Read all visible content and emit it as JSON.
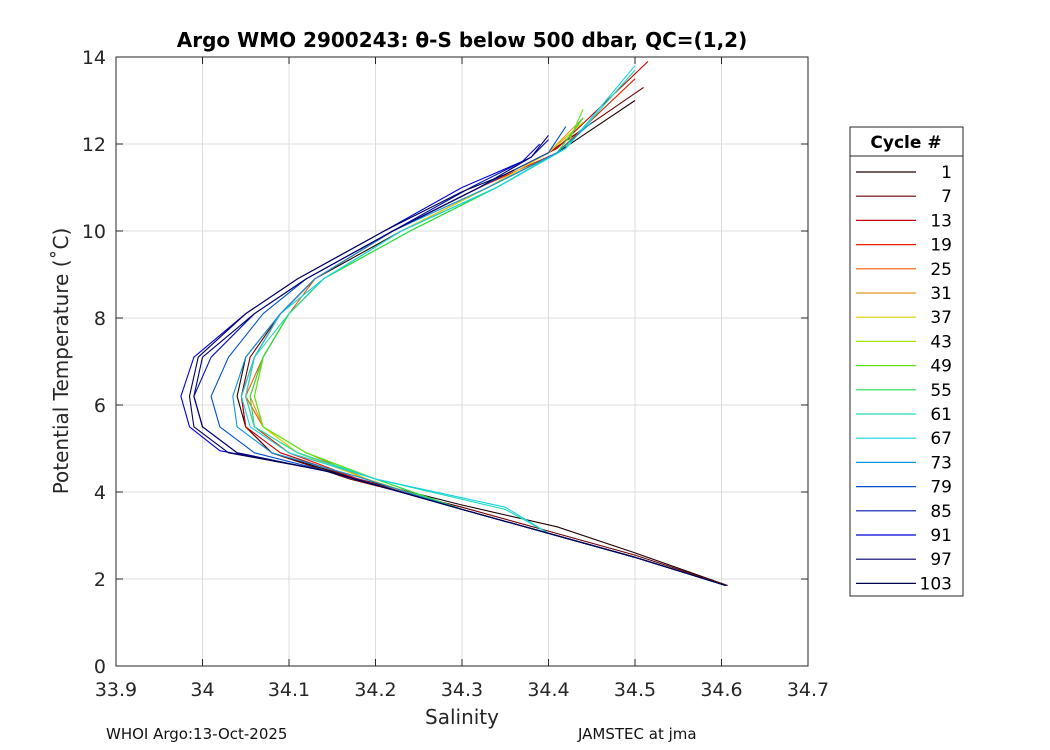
{
  "chart_data": {
    "type": "line",
    "title": "Argo WMO 2900243: θ-S below 500 dbar,  QC=(1,2)",
    "xlabel": "Salinity",
    "ylabel": "Potential Temperature (˚C)",
    "xlim": [
      33.9,
      34.7
    ],
    "ylim": [
      0,
      14
    ],
    "x_ticks": [
      33.9,
      34.0,
      34.1,
      34.2,
      34.3,
      34.4,
      34.5,
      34.6,
      34.7
    ],
    "x_tick_labels": [
      "33.9",
      "34",
      "34.1",
      "34.2",
      "34.3",
      "34.4",
      "34.5",
      "34.6",
      "34.7"
    ],
    "y_ticks": [
      0,
      2,
      4,
      6,
      8,
      10,
      12,
      14
    ],
    "y_tick_labels": [
      "0",
      "2",
      "4",
      "6",
      "8",
      "10",
      "12",
      "14"
    ],
    "grid": true,
    "legend": {
      "title": "Cycle #",
      "placement": "right"
    },
    "series": [
      {
        "name": "1",
        "color": "#200000",
        "x": [
          34.607,
          34.5,
          34.41,
          34.3,
          34.17,
          34.08,
          34.05,
          34.04,
          34.05,
          34.09,
          34.13,
          34.23,
          34.33,
          34.41,
          34.5
        ],
        "y": [
          1.85,
          2.6,
          3.2,
          3.7,
          4.35,
          4.9,
          5.5,
          6.2,
          7.1,
          8.1,
          8.9,
          10.0,
          11.0,
          11.8,
          13.0
        ]
      },
      {
        "name": "7",
        "color": "#6a0000",
        "x": [
          34.607,
          34.5,
          34.4,
          34.3,
          34.17,
          34.08,
          34.05,
          34.045,
          34.055,
          34.09,
          34.13,
          34.22,
          34.32,
          34.4,
          34.51
        ],
        "y": [
          1.85,
          2.55,
          3.1,
          3.65,
          4.3,
          4.9,
          5.5,
          6.2,
          7.1,
          8.1,
          8.9,
          10.0,
          11.0,
          11.8,
          13.3
        ]
      },
      {
        "name": "13",
        "color": "#c40000",
        "x": [
          34.605,
          34.5,
          34.4,
          34.3,
          34.18,
          34.09,
          34.05,
          34.045,
          34.06,
          34.09,
          34.13,
          34.22,
          34.32,
          34.41,
          34.515
        ],
        "y": [
          1.85,
          2.5,
          3.05,
          3.6,
          4.3,
          4.9,
          5.5,
          6.2,
          7.1,
          8.1,
          8.9,
          10.0,
          11.0,
          11.9,
          13.9
        ]
      },
      {
        "name": "19",
        "color": "#e61e00",
        "x": [
          34.605,
          34.5,
          34.4,
          34.3,
          34.18,
          34.1,
          34.06,
          34.05,
          34.06,
          34.09,
          34.13,
          34.22,
          34.32,
          34.41,
          34.5
        ],
        "y": [
          1.85,
          2.5,
          3.05,
          3.6,
          4.3,
          4.9,
          5.5,
          6.2,
          7.1,
          8.1,
          8.9,
          10.0,
          11.0,
          11.8,
          13.5
        ]
      },
      {
        "name": "25",
        "color": "#f05a00",
        "x": [
          34.605,
          34.5,
          34.4,
          34.3,
          34.19,
          34.12,
          34.07,
          34.05,
          34.07,
          34.1,
          34.13,
          34.22,
          34.32,
          34.4,
          34.44
        ],
        "y": [
          1.85,
          2.5,
          3.05,
          3.6,
          4.3,
          4.9,
          5.5,
          6.2,
          7.1,
          8.1,
          8.9,
          10.0,
          11.0,
          11.8,
          12.5
        ]
      },
      {
        "name": "31",
        "color": "#e8961e",
        "x": [
          34.605,
          34.5,
          34.4,
          34.3,
          34.19,
          34.11,
          34.07,
          34.055,
          34.07,
          34.1,
          34.14,
          34.23,
          34.33,
          34.4,
          34.44
        ],
        "y": [
          1.85,
          2.5,
          3.05,
          3.6,
          4.3,
          4.9,
          5.5,
          6.2,
          7.1,
          8.1,
          8.9,
          10.0,
          11.0,
          11.8,
          12.6
        ]
      },
      {
        "name": "37",
        "color": "#dcd200",
        "x": [
          34.605,
          34.5,
          34.4,
          34.3,
          34.19,
          34.11,
          34.07,
          34.06,
          34.07,
          34.1,
          34.14,
          34.23,
          34.33,
          34.4,
          34.44
        ],
        "y": [
          1.85,
          2.5,
          3.05,
          3.6,
          4.3,
          4.9,
          5.5,
          6.2,
          7.1,
          8.1,
          8.9,
          10.0,
          11.0,
          11.8,
          12.5
        ]
      },
      {
        "name": "43",
        "color": "#a0e600",
        "x": [
          34.605,
          34.5,
          34.4,
          34.3,
          34.2,
          34.12,
          34.07,
          34.06,
          34.07,
          34.1,
          34.14,
          34.24,
          34.34,
          34.41,
          34.44
        ],
        "y": [
          1.85,
          2.5,
          3.05,
          3.6,
          4.3,
          4.9,
          5.5,
          6.2,
          7.1,
          8.1,
          8.9,
          10.0,
          11.0,
          11.8,
          12.6
        ]
      },
      {
        "name": "49",
        "color": "#5ae61e",
        "x": [
          34.605,
          34.5,
          34.4,
          34.3,
          34.2,
          34.12,
          34.07,
          34.06,
          34.07,
          34.1,
          34.14,
          34.24,
          34.34,
          34.42,
          34.44
        ],
        "y": [
          1.85,
          2.5,
          3.05,
          3.6,
          4.3,
          4.9,
          5.5,
          6.2,
          7.1,
          8.1,
          8.9,
          10.0,
          11.0,
          11.9,
          12.8
        ]
      },
      {
        "name": "55",
        "color": "#28dc50",
        "x": [
          34.605,
          34.5,
          34.4,
          34.3,
          34.2,
          34.11,
          34.06,
          34.055,
          34.07,
          34.1,
          34.14,
          34.24,
          34.34,
          34.41,
          34.44
        ],
        "y": [
          1.85,
          2.5,
          3.05,
          3.6,
          4.3,
          4.9,
          5.5,
          6.2,
          7.1,
          8.1,
          8.9,
          10.0,
          11.0,
          11.8,
          12.6
        ]
      },
      {
        "name": "61",
        "color": "#1edcb4",
        "x": [
          34.605,
          34.5,
          34.4,
          34.35,
          34.2,
          34.11,
          34.06,
          34.05,
          34.06,
          34.1,
          34.14,
          34.23,
          34.34,
          34.42,
          34.5
        ],
        "y": [
          1.85,
          2.5,
          3.05,
          3.6,
          4.3,
          4.9,
          5.5,
          6.2,
          7.1,
          8.1,
          8.9,
          10.0,
          11.0,
          11.9,
          13.7
        ]
      },
      {
        "name": "67",
        "color": "#14d2e6",
        "x": [
          34.605,
          34.5,
          34.4,
          34.35,
          34.2,
          34.1,
          34.055,
          34.045,
          34.06,
          34.09,
          34.14,
          34.23,
          34.34,
          34.42,
          34.5
        ],
        "y": [
          1.85,
          2.5,
          3.05,
          3.65,
          4.3,
          4.9,
          5.5,
          6.2,
          7.1,
          8.1,
          8.9,
          10.0,
          11.0,
          11.9,
          13.8
        ]
      },
      {
        "name": "73",
        "color": "#0a96dc",
        "x": [
          34.605,
          34.5,
          34.4,
          34.3,
          34.18,
          34.08,
          34.04,
          34.035,
          34.05,
          34.09,
          34.13,
          34.22,
          34.33,
          34.41,
          34.45
        ],
        "y": [
          1.85,
          2.5,
          3.05,
          3.6,
          4.35,
          4.9,
          5.5,
          6.2,
          7.1,
          8.1,
          8.9,
          10.0,
          11.0,
          11.8,
          12.5
        ]
      },
      {
        "name": "79",
        "color": "#0050c8",
        "x": [
          34.605,
          34.5,
          34.4,
          34.3,
          34.16,
          34.06,
          34.02,
          34.01,
          34.03,
          34.07,
          34.12,
          34.22,
          34.32,
          34.4,
          34.42
        ],
        "y": [
          1.85,
          2.5,
          3.05,
          3.6,
          4.4,
          4.9,
          5.5,
          6.2,
          7.1,
          8.1,
          8.9,
          10.0,
          11.0,
          11.8,
          12.4
        ]
      },
      {
        "name": "85",
        "color": "#0014b4",
        "x": [
          34.605,
          34.5,
          34.4,
          34.3,
          34.15,
          34.04,
          34.0,
          33.99,
          34.01,
          34.06,
          34.12,
          34.22,
          34.31,
          34.38,
          34.4
        ],
        "y": [
          1.85,
          2.5,
          3.05,
          3.6,
          4.45,
          4.9,
          5.5,
          6.2,
          7.1,
          8.1,
          8.9,
          10.0,
          11.0,
          11.7,
          12.1
        ]
      },
      {
        "name": "91",
        "color": "#0000dc",
        "x": [
          34.605,
          34.5,
          34.4,
          34.3,
          34.14,
          34.02,
          33.985,
          33.975,
          33.99,
          34.05,
          34.11,
          34.21,
          34.3,
          34.37,
          34.39
        ],
        "y": [
          1.85,
          2.5,
          3.05,
          3.6,
          4.5,
          4.95,
          5.5,
          6.2,
          7.1,
          8.1,
          8.9,
          10.0,
          11.0,
          11.6,
          12.0
        ]
      },
      {
        "name": "97",
        "color": "#00006e",
        "x": [
          34.605,
          34.5,
          34.4,
          34.3,
          34.15,
          34.04,
          34.0,
          33.99,
          34.0,
          34.06,
          34.12,
          34.22,
          34.32,
          34.38,
          34.4
        ],
        "y": [
          1.85,
          2.5,
          3.05,
          3.6,
          4.45,
          4.9,
          5.5,
          6.2,
          7.1,
          8.1,
          8.9,
          10.0,
          11.0,
          11.7,
          12.2
        ]
      },
      {
        "name": "103",
        "color": "#000050",
        "x": [
          34.605,
          34.5,
          34.4,
          34.3,
          34.14,
          34.03,
          33.99,
          33.985,
          33.995,
          34.05,
          34.11,
          34.21,
          34.3,
          34.35,
          34.36
        ],
        "y": [
          1.85,
          2.5,
          3.05,
          3.6,
          4.5,
          4.9,
          5.5,
          6.2,
          7.1,
          8.1,
          8.9,
          10.0,
          10.9,
          11.3,
          11.4
        ]
      }
    ]
  },
  "footer": {
    "left": "WHOI Argo:13-Oct-2025",
    "right": "JAMSTEC at jma"
  }
}
